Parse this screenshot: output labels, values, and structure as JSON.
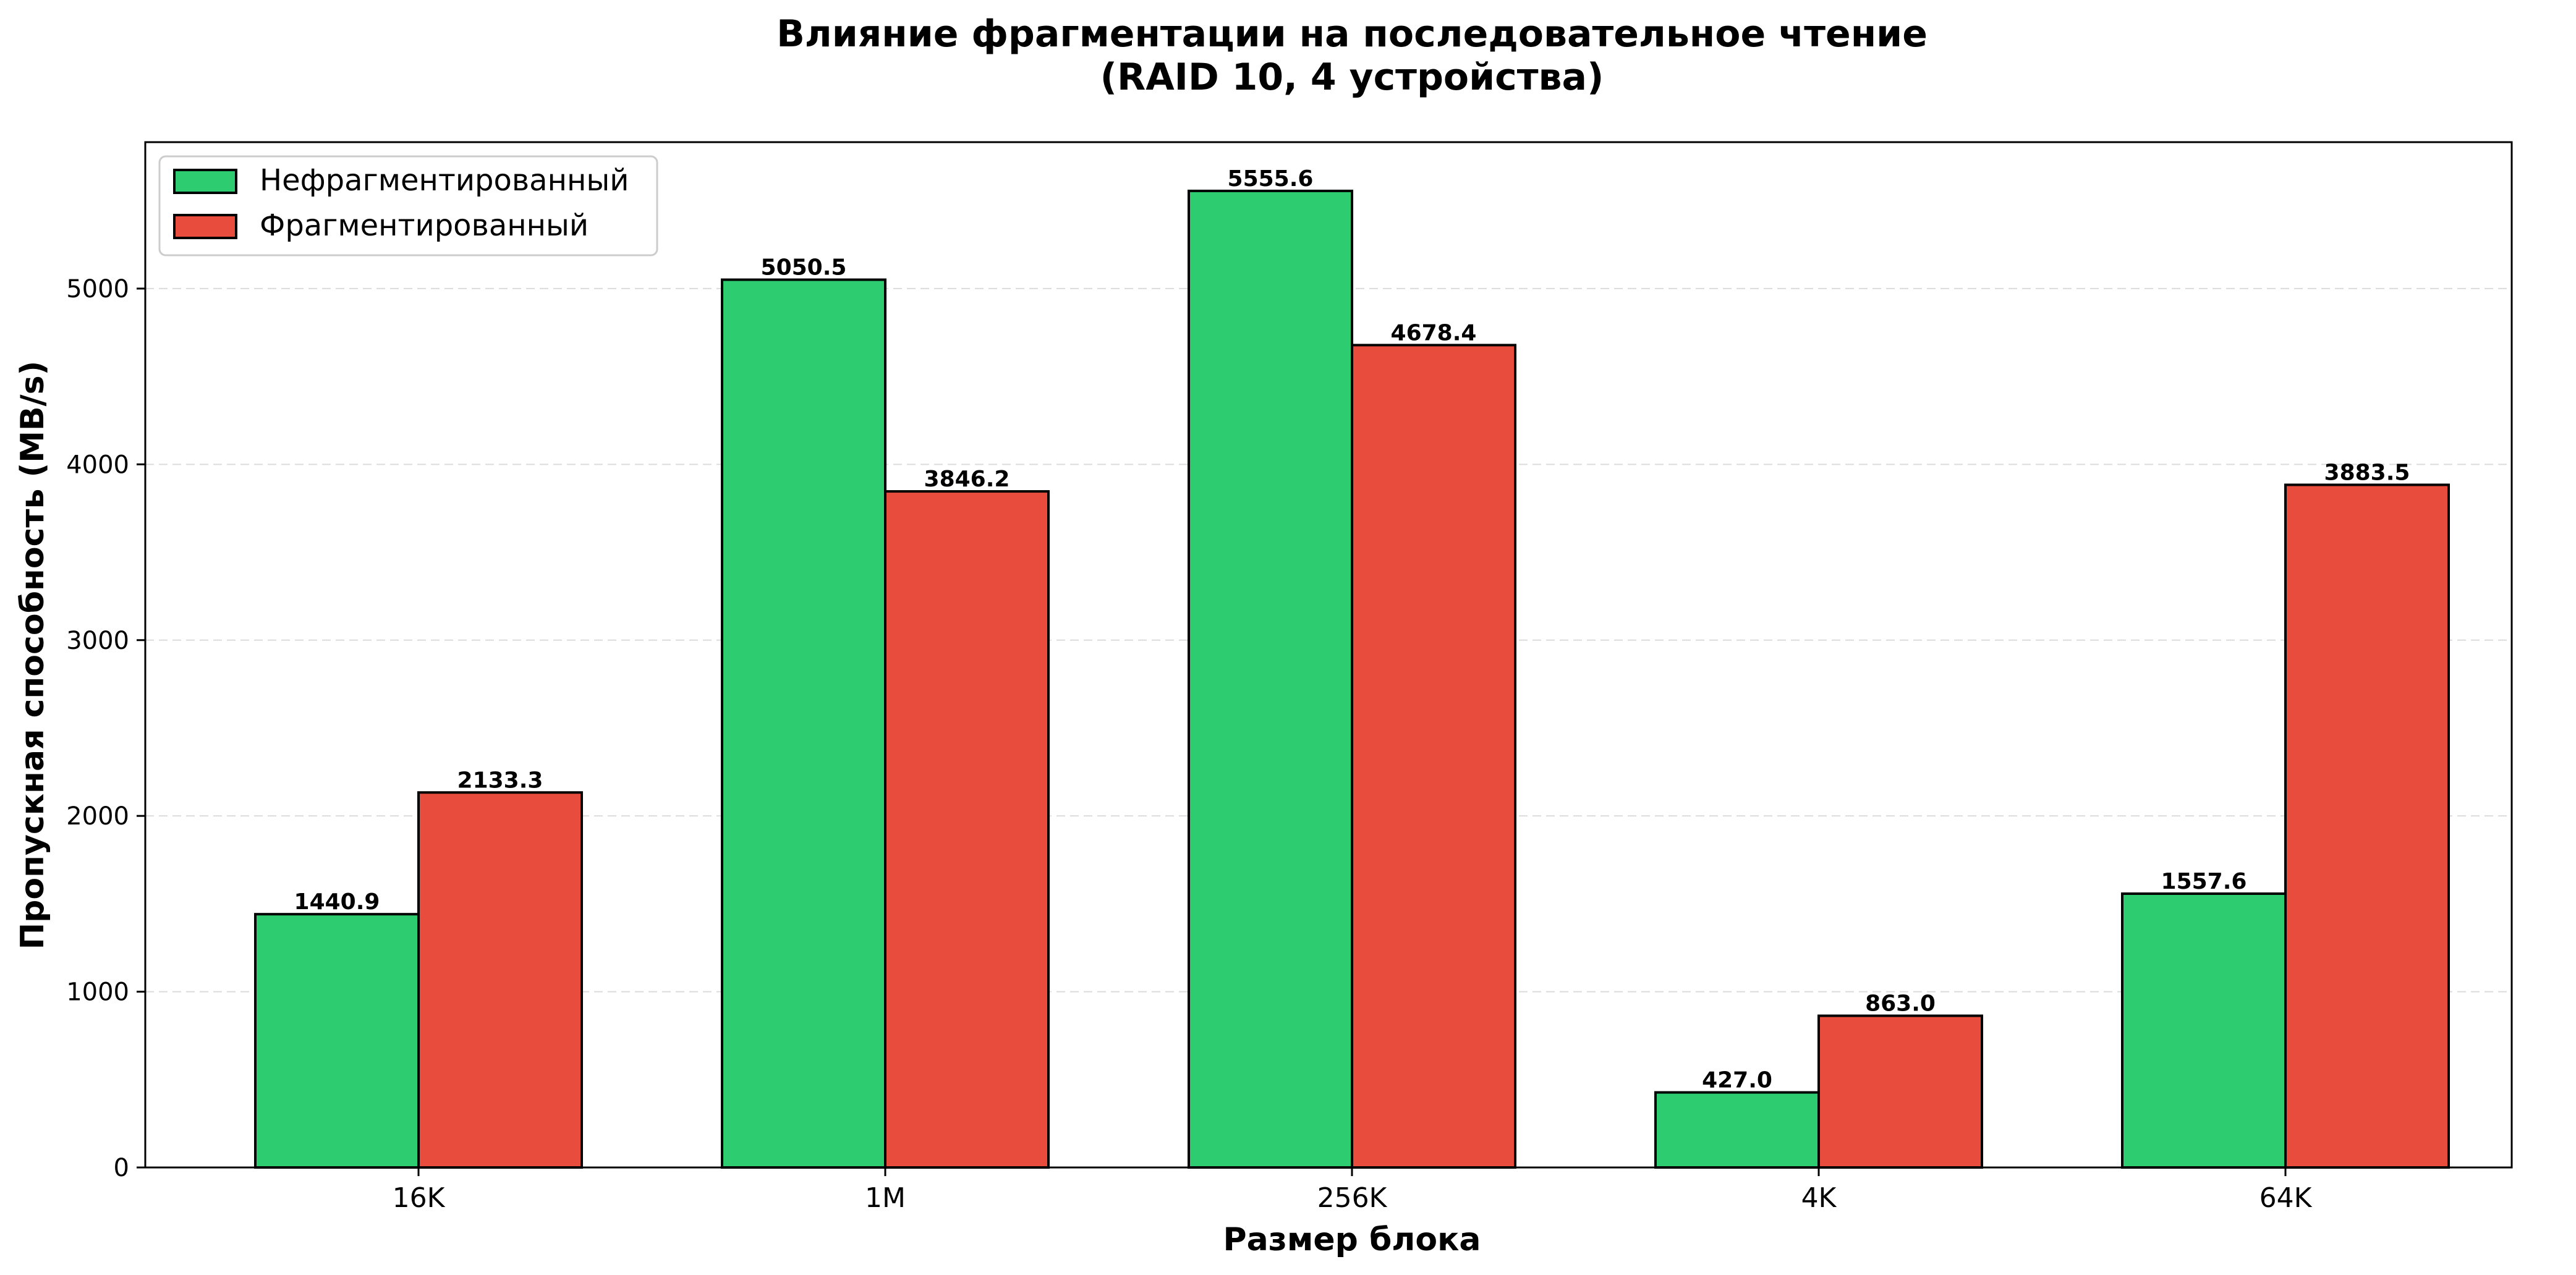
{
  "chart_data": {
    "type": "bar",
    "title_lines": [
      "Влияние фрагментации на последовательное чтение",
      "(RAID 10, 4 устройства)"
    ],
    "xlabel": "Размер блока",
    "ylabel": "Пропускная способность (MB/s)",
    "categories": [
      "16K",
      "1M",
      "256K",
      "4K",
      "64K"
    ],
    "series": [
      {
        "name": "Нефрагментированный",
        "color": "#2ecc71",
        "values": [
          1440.9,
          5050.5,
          5555.6,
          427.0,
          1557.6
        ],
        "labels": [
          "1440.9",
          "5050.5",
          "5555.6",
          "427.0",
          "1557.6"
        ]
      },
      {
        "name": "Фрагментированный",
        "color": "#e74c3c",
        "values": [
          2133.3,
          3846.2,
          4678.4,
          863.0,
          3883.5
        ],
        "labels": [
          "2133.3",
          "3846.2",
          "4678.4",
          "863.0",
          "3883.5"
        ]
      }
    ],
    "ylim": [
      0,
      5833
    ],
    "yticks": [
      0,
      1000,
      2000,
      3000,
      4000,
      5000
    ],
    "ytick_labels": [
      "0",
      "1000",
      "2000",
      "3000",
      "4000",
      "5000"
    ],
    "grid": true,
    "grid_axis": "y",
    "legend_position": "top-left"
  }
}
